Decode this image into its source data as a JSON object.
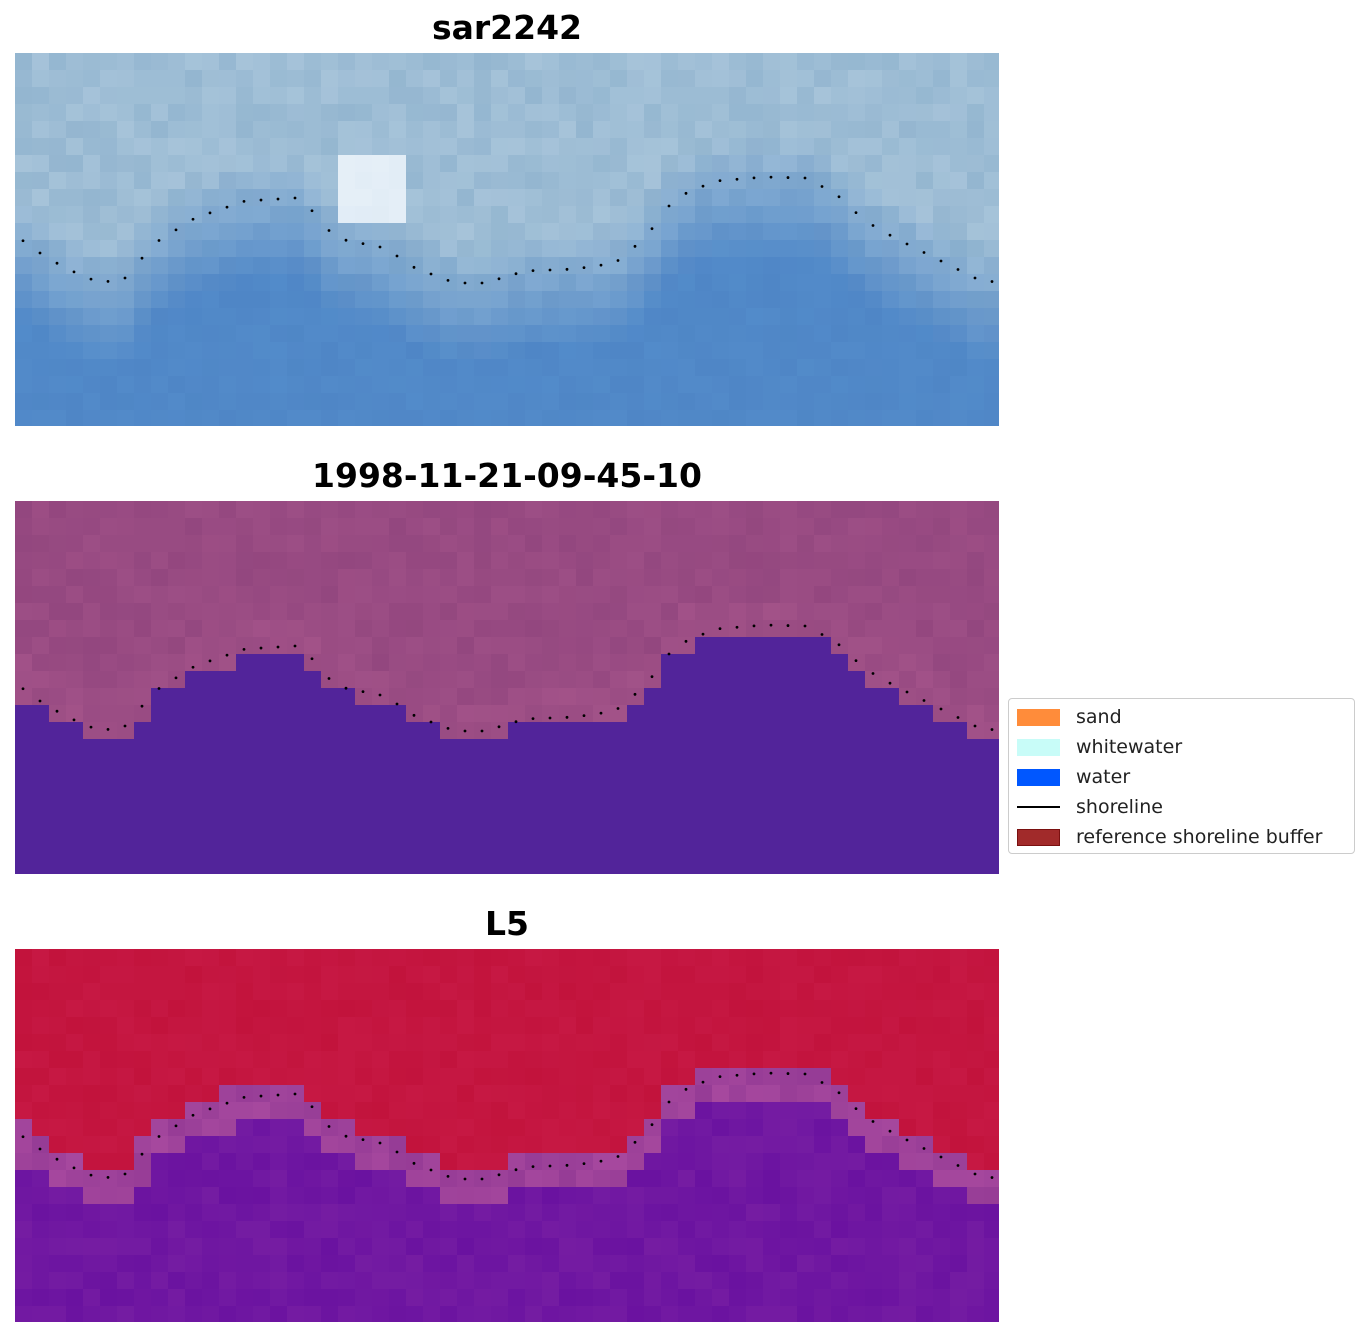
{
  "panels": [
    {
      "title": "sar2242",
      "style": "rgb"
    },
    {
      "title": "1998-11-21-09-45-10",
      "style": "classified"
    },
    {
      "title": "L5",
      "style": "index"
    }
  ],
  "legend": {
    "items": [
      {
        "label": "sand",
        "kind": "patch",
        "color": "#ff8c3a"
      },
      {
        "label": "whitewater",
        "kind": "patch",
        "color": "#c8fcf8"
      },
      {
        "label": "water",
        "kind": "patch",
        "color": "#0057ff"
      },
      {
        "label": "shoreline",
        "kind": "line",
        "color": "#000000"
      },
      {
        "label": "reference shoreline buffer",
        "kind": "patch",
        "color": "#a12a2a",
        "edge": "#7a1010"
      }
    ]
  },
  "colors": {
    "rgb_land": "#94b6d0",
    "rgb_water": "#4f86c6",
    "class_land": "#93477f",
    "class_water": "#52249a",
    "index_land": "#c2133c",
    "index_water": "#6a12a0",
    "shoreline_points": "#000000"
  }
}
